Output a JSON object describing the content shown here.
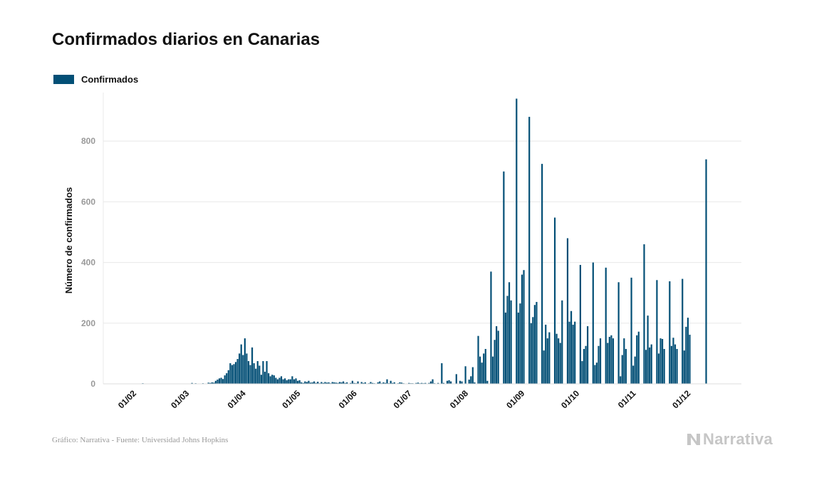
{
  "title": "Confirmados diarios en Canarias",
  "footer": "Gráfico: Narrativa - Fuente: Universidad Johns Hopkins",
  "logo": {
    "text": "Narrativa",
    "icon": "narrativa-logo-icon"
  },
  "colors": {
    "bar": "#034f76",
    "grid": "#e8e8e8",
    "logo": "#c6c6c6"
  },
  "chart_data": {
    "type": "bar",
    "ylabel": "Número de confirmados",
    "ylim": [
      0,
      960
    ],
    "yticks": [
      0,
      200,
      400,
      600,
      800
    ],
    "xticks": [
      "01/02",
      "01/03",
      "01/04",
      "01/05",
      "01/06",
      "01/07",
      "01/08",
      "01/09",
      "01/10",
      "01/11",
      "01/12"
    ],
    "x_start": "2020-01-22",
    "legend": {
      "position": "top-left"
    },
    "grid": true,
    "series": [
      {
        "name": "Confirmados",
        "values": [
          0,
          0,
          0,
          0,
          0,
          0,
          0,
          0,
          0,
          0,
          0,
          0,
          0,
          0,
          0,
          0,
          0,
          0,
          2,
          0,
          0,
          0,
          0,
          0,
          0,
          0,
          0,
          0,
          0,
          0,
          0,
          0,
          0,
          0,
          0,
          0,
          0,
          0,
          0,
          0,
          0,
          0,
          0,
          0,
          0,
          3,
          0,
          2,
          0,
          0,
          0,
          2,
          0,
          0,
          4,
          3,
          5,
          4,
          10,
          14,
          18,
          20,
          16,
          28,
          35,
          45,
          68,
          62,
          65,
          72,
          82,
          100,
          130,
          95,
          150,
          100,
          75,
          62,
          120,
          68,
          50,
          75,
          60,
          30,
          75,
          40,
          75,
          35,
          25,
          30,
          28,
          20,
          15,
          20,
          25,
          15,
          18,
          12,
          15,
          15,
          25,
          15,
          18,
          10,
          12,
          5,
          3,
          8,
          6,
          10,
          4,
          5,
          8,
          3,
          7,
          2,
          6,
          3,
          6,
          4,
          5,
          2,
          6,
          5,
          4,
          3,
          6,
          5,
          8,
          3,
          5,
          1,
          3,
          10,
          3,
          2,
          8,
          1,
          6,
          3,
          5,
          1,
          2,
          6,
          3,
          2,
          1,
          5,
          8,
          2,
          5,
          3,
          15,
          2,
          10,
          3,
          5,
          1,
          2,
          5,
          4,
          2,
          1,
          0,
          3,
          2,
          2,
          1,
          3,
          4,
          2,
          3,
          2,
          3,
          0,
          3,
          8,
          15,
          2,
          0,
          3,
          0,
          68,
          3,
          0,
          10,
          12,
          8,
          0,
          0,
          32,
          0,
          10,
          8,
          0,
          58,
          0,
          14,
          25,
          55,
          5,
          0,
          158,
          90,
          70,
          100,
          115,
          10,
          0,
          370,
          90,
          145,
          190,
          175,
          0,
          0,
          700,
          235,
          290,
          335,
          275,
          0,
          0,
          940,
          235,
          265,
          360,
          375,
          0,
          0,
          880,
          200,
          220,
          260,
          270,
          0,
          0,
          725,
          110,
          195,
          150,
          170,
          0,
          0,
          548,
          165,
          150,
          135,
          275,
          0,
          0,
          480,
          205,
          240,
          195,
          205,
          0,
          0,
          392,
          75,
          115,
          125,
          190,
          0,
          0,
          400,
          62,
          70,
          125,
          150,
          0,
          0,
          383,
          135,
          155,
          160,
          150,
          0,
          0,
          335,
          25,
          95,
          150,
          115,
          0,
          0,
          350,
          60,
          90,
          160,
          172,
          0,
          0,
          460,
          112,
          225,
          120,
          130,
          0,
          0,
          342,
          100,
          150,
          148,
          115,
          0,
          0,
          338,
          125,
          152,
          130,
          115,
          0,
          0,
          346,
          110,
          188,
          218,
          162,
          0,
          0,
          0,
          0,
          0,
          0,
          0,
          0,
          740
        ]
      }
    ]
  }
}
